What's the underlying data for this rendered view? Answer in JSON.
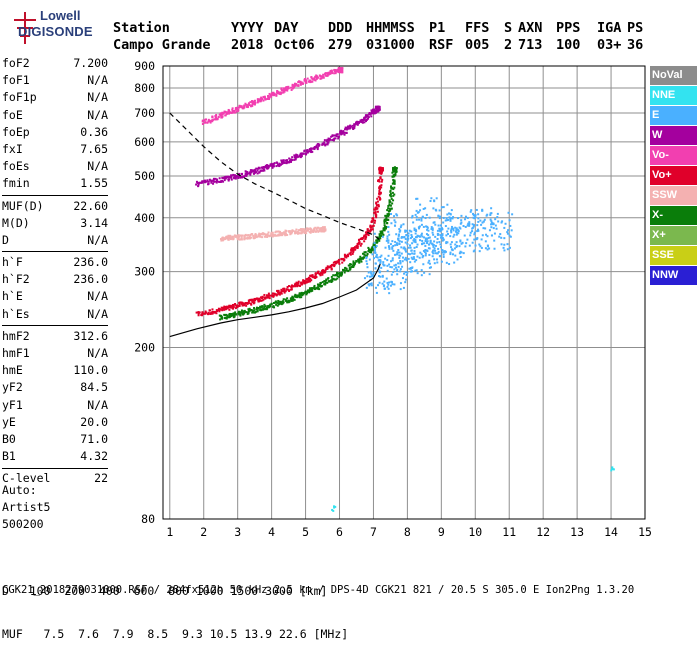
{
  "logo": {
    "line1": "Lowell",
    "line2": "DIGISONDE"
  },
  "header": {
    "row1": [
      "Station",
      "YYYY",
      "DAY",
      "DDD",
      "HHMMSS",
      "P1",
      "FFS",
      "S",
      "AXN",
      "PPS",
      "IGA",
      "PS"
    ],
    "row2": [
      "Campo Grande",
      "2018",
      "Oct06",
      "279",
      "031000",
      "RSF",
      "005",
      "2",
      "713",
      "100",
      "03+",
      "36"
    ]
  },
  "params_groups": [
    [
      {
        "name": "foF2",
        "value": "7.200"
      },
      {
        "name": "foF1",
        "value": "N/A"
      },
      {
        "name": "foF1p",
        "value": "N/A"
      },
      {
        "name": "foE",
        "value": "N/A"
      },
      {
        "name": "foEp",
        "value": "0.36"
      },
      {
        "name": "fxI",
        "value": "7.65"
      },
      {
        "name": "foEs",
        "value": "N/A"
      },
      {
        "name": "fmin",
        "value": "1.55"
      }
    ],
    [
      {
        "name": "MUF(D)",
        "value": "22.60"
      },
      {
        "name": "M(D)",
        "value": "3.14"
      },
      {
        "name": "D",
        "value": "N/A"
      }
    ],
    [
      {
        "name": "h`F",
        "value": "236.0"
      },
      {
        "name": "h`F2",
        "value": "236.0"
      },
      {
        "name": "h`E",
        "value": "N/A"
      },
      {
        "name": "h`Es",
        "value": "N/A"
      }
    ],
    [
      {
        "name": "hmF2",
        "value": "312.6"
      },
      {
        "name": "hmF1",
        "value": "N/A"
      },
      {
        "name": "hmE",
        "value": "110.0"
      },
      {
        "name": "yF2",
        "value": "84.5"
      },
      {
        "name": "yF1",
        "value": "N/A"
      },
      {
        "name": "yE",
        "value": "20.0"
      },
      {
        "name": "B0",
        "value": "71.0"
      },
      {
        "name": "B1",
        "value": "4.32"
      }
    ],
    [
      {
        "name": "C-level",
        "value": "22"
      }
    ]
  ],
  "auto": {
    "l1": "Auto:",
    "l2": "Artist5",
    "l3": "500200"
  },
  "legend": [
    {
      "label": "NoVal",
      "color": "#8c8c8c"
    },
    {
      "label": "NNE",
      "color": "#33e3f0"
    },
    {
      "label": "E",
      "color": "#4ab0ff"
    },
    {
      "label": "W",
      "color": "#a4009e"
    },
    {
      "label": "Vo-",
      "color": "#f23fb0"
    },
    {
      "label": "Vo+",
      "color": "#e0002a"
    },
    {
      "label": "SSW",
      "color": "#f4b1b1"
    },
    {
      "label": "X-",
      "color": "#0a7d0a"
    },
    {
      "label": "X+",
      "color": "#7bb84e"
    },
    {
      "label": "SSE",
      "color": "#c9cf16"
    },
    {
      "label": "NNW",
      "color": "#2a1fd4"
    }
  ],
  "bottom": {
    "d_label": "D",
    "d_values": [
      "100",
      "200",
      "400",
      "600",
      "800",
      "1000",
      "1500",
      "3000"
    ],
    "d_unit": "[km]",
    "muf_label": "MUF",
    "muf_values": [
      "7.5",
      "7.6",
      "7.9",
      "8.5",
      "9.3",
      "10.5",
      "13.9",
      "22.6"
    ],
    "muf_unit": "[MHz]"
  },
  "footer": "CGK21_2018279031000.RSF / 284fx512h 50 kHz 2.5 km / DPS-4D CGK21 821 / 20.5 S 305.0 E Ion2Png 1.3.20",
  "chart_data": {
    "type": "scatter",
    "xlabel": "",
    "ylabel": "",
    "xlim": [
      0.8,
      15
    ],
    "ylim": [
      80,
      900
    ],
    "yscale": "log",
    "xticks": [
      1,
      2,
      3,
      4,
      5,
      6,
      7,
      8,
      9,
      10,
      11,
      12,
      13,
      14,
      15
    ],
    "yticks": [
      80,
      200,
      300,
      400,
      500,
      600,
      700,
      800,
      900
    ],
    "grid": true,
    "series": [
      {
        "name": "Vo+",
        "x": [
          1.8,
          2.5,
          3.0,
          3.5,
          4.0,
          4.5,
          5.0,
          5.5,
          6.0,
          6.5,
          6.9,
          7.1,
          7.2
        ],
        "y": [
          240,
          246,
          252,
          258,
          266,
          276,
          288,
          302,
          320,
          345,
          380,
          430,
          520
        ]
      },
      {
        "name": "X-",
        "x": [
          2.5,
          3.0,
          3.5,
          4.0,
          4.5,
          5.0,
          5.5,
          6.0,
          6.5,
          7.0,
          7.3,
          7.5,
          7.6
        ],
        "y": [
          236,
          241,
          246,
          252,
          260,
          270,
          283,
          298,
          318,
          345,
          380,
          440,
          520
        ]
      },
      {
        "name": "W",
        "x": [
          1.8,
          2.5,
          3.0,
          3.5,
          4.0,
          4.5,
          5.0,
          5.5,
          6.0,
          6.5,
          6.9,
          7.1
        ],
        "y": [
          482,
          492,
          503,
          516,
          530,
          548,
          570,
          598,
          630,
          665,
          700,
          720
        ]
      },
      {
        "name": "Vo-",
        "x": [
          2.0,
          2.5,
          3.0,
          3.5,
          4.0,
          4.5,
          5.0,
          5.5,
          6.0
        ],
        "y": [
          670,
          695,
          720,
          745,
          775,
          805,
          835,
          860,
          885
        ]
      },
      {
        "name": "E",
        "x": [
          7.3,
          7.6,
          8.0,
          8.5,
          9.0,
          9.5,
          10.0,
          10.5,
          7.5,
          8.2,
          8.8
        ],
        "y": [
          300,
          340,
          370,
          360,
          350,
          370,
          380,
          375,
          310,
          330,
          400
        ]
      },
      {
        "name": "SSW",
        "x": [
          2.5,
          3.0,
          3.5,
          4.0,
          4.5,
          5.0,
          5.5
        ],
        "y": [
          360,
          362,
          365,
          368,
          372,
          375,
          378
        ]
      },
      {
        "name": "NNE",
        "x": [
          5.8,
          14.0
        ],
        "y": [
          85,
          105
        ]
      }
    ],
    "curves": [
      {
        "name": "profile",
        "x": [
          1.0,
          1.8,
          2.5,
          3.0,
          3.5,
          4.0,
          4.5,
          5.0,
          5.5,
          6.0,
          6.5,
          7.0,
          7.15,
          7.2
        ],
        "y": [
          212,
          221,
          228,
          232,
          235,
          238,
          242,
          247,
          253,
          262,
          272,
          290,
          305,
          312.6
        ]
      },
      {
        "name": "muf-dashed",
        "x": [
          1.0,
          1.5,
          2.0,
          2.5,
          3.0,
          3.5,
          4.0,
          4.5,
          5.0,
          5.5,
          6.0,
          6.5,
          7.0,
          7.2
        ],
        "y": [
          700,
          640,
          585,
          540,
          505,
          480,
          460,
          440,
          420,
          405,
          390,
          378,
          365,
          355
        ]
      }
    ]
  }
}
